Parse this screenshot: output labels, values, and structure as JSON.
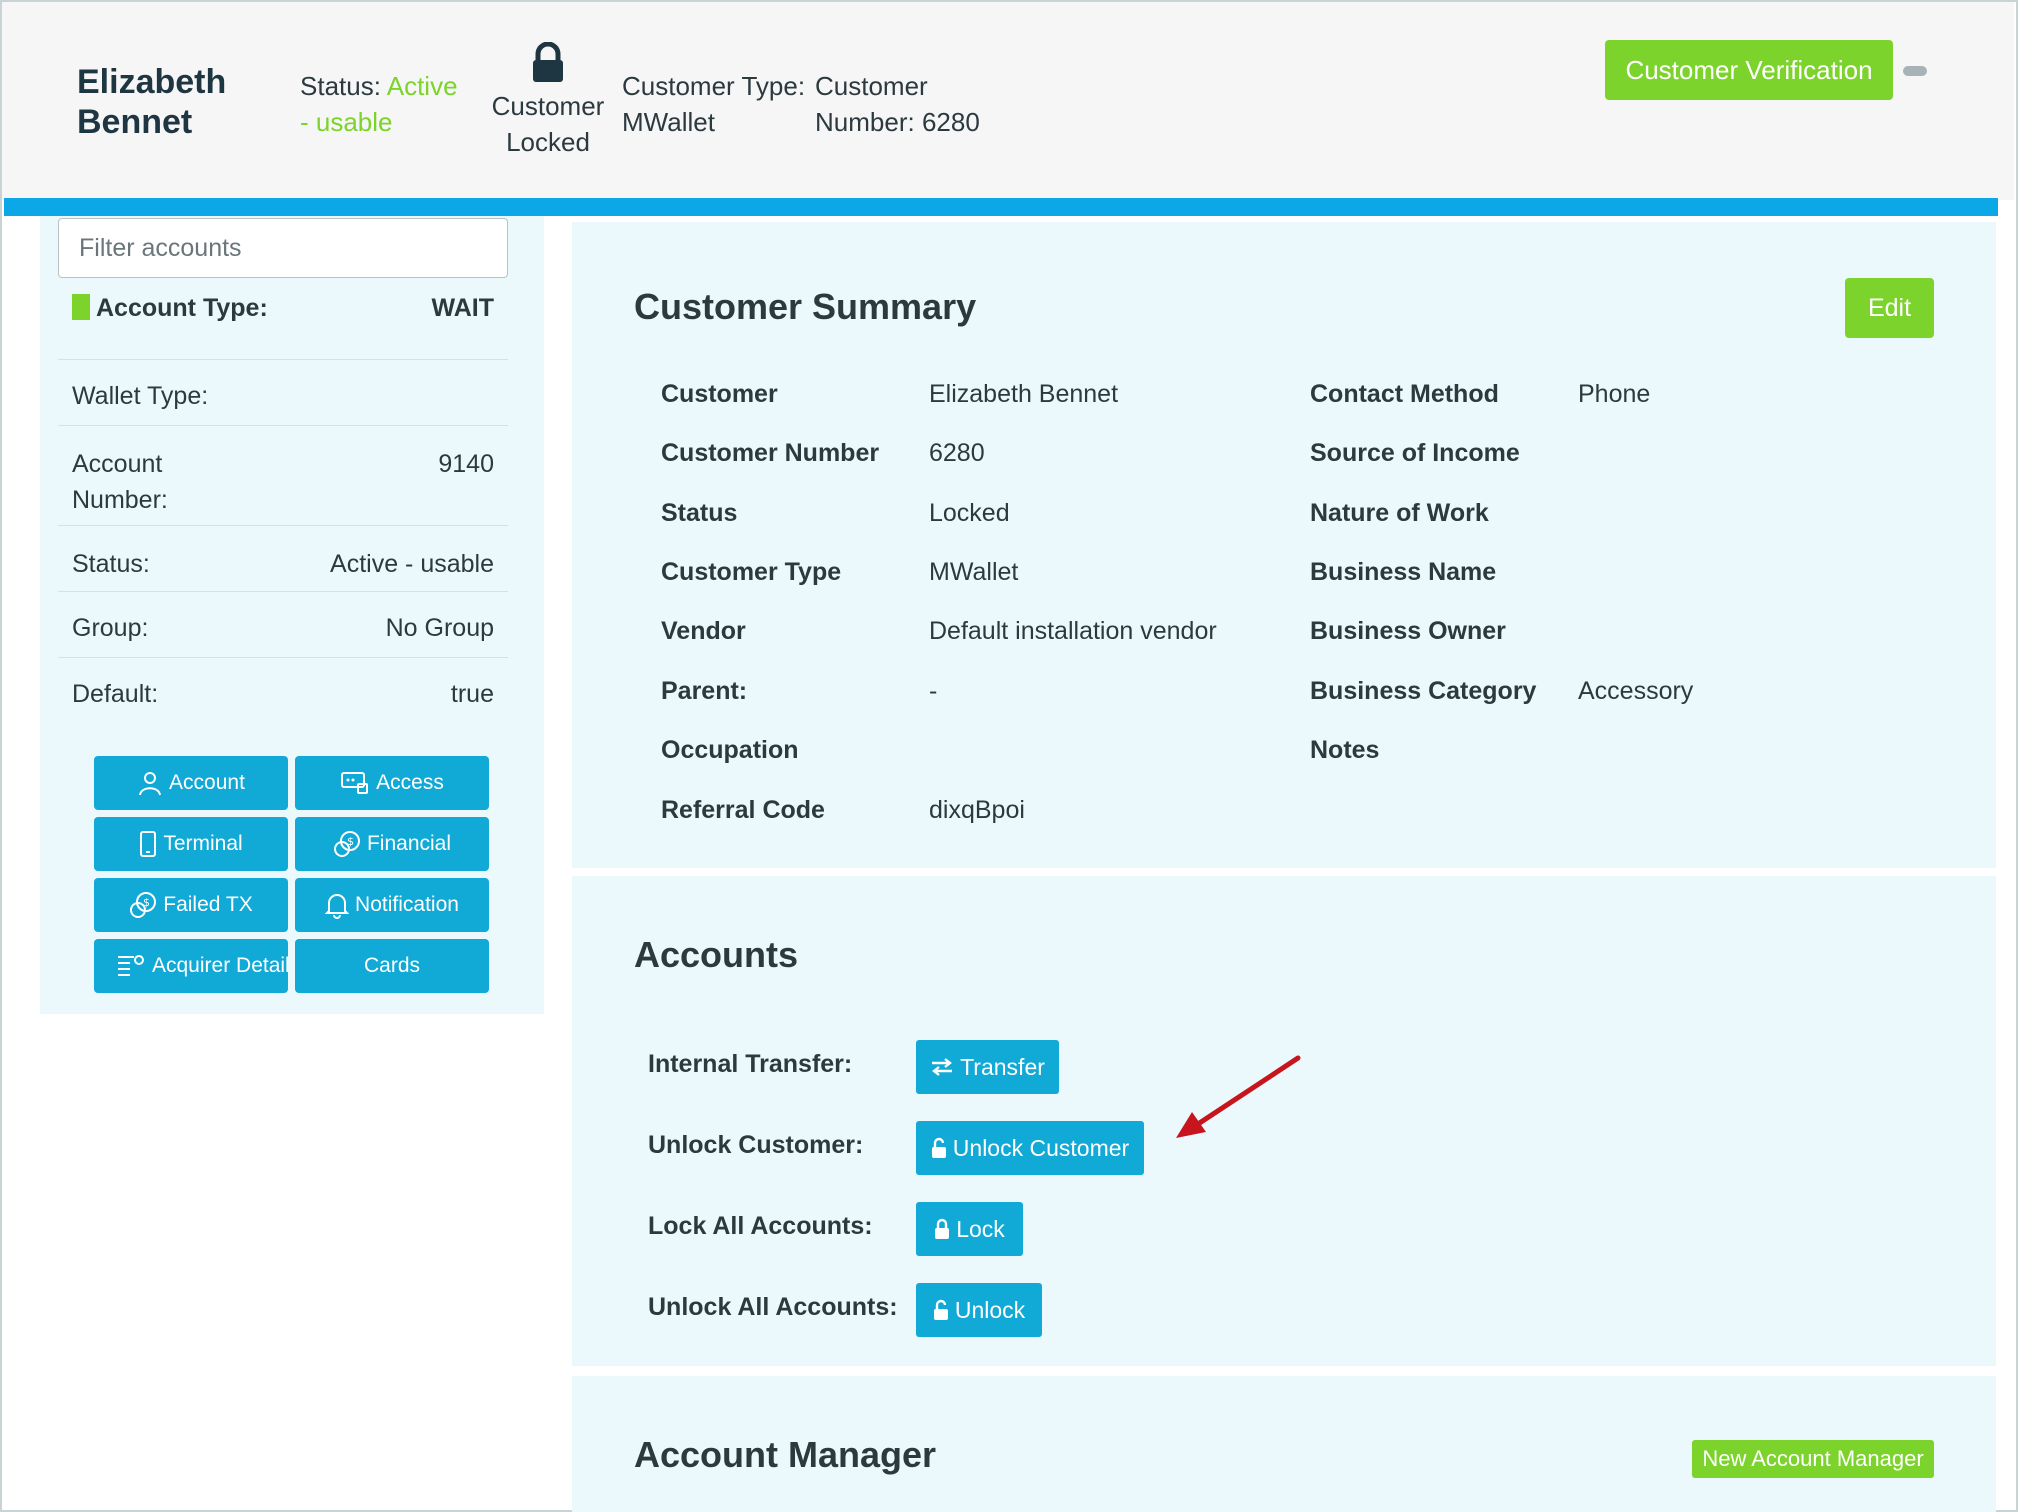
{
  "header": {
    "customer_name": "Elizabeth Bennet",
    "status_label": "Status:",
    "status_value": "Active - usable",
    "lock_state": "Customer Locked",
    "customer_type_label": "Customer Type:",
    "customer_type_value": "MWallet",
    "customer_number_label": "Customer Number:",
    "customer_number_value": "6280",
    "verification_button": "Customer Verification",
    "accent_color": "#0ba7e7",
    "green_color": "#7cd32c"
  },
  "sidebar": {
    "filter_placeholder": "Filter accounts",
    "rows": [
      {
        "label": "Account Type:",
        "value": "WAIT"
      },
      {
        "label": "Wallet Type:",
        "value": ""
      },
      {
        "label": "Account Number:",
        "value": "9140"
      },
      {
        "label": "Status:",
        "value": "Active - usable"
      },
      {
        "label": "Group:",
        "value": "No Group"
      },
      {
        "label": "Default:",
        "value": "true"
      }
    ],
    "buttons": [
      {
        "label": "Account",
        "icon": "user-icon"
      },
      {
        "label": "Access",
        "icon": "access-icon"
      },
      {
        "label": "Terminal",
        "icon": "phone-icon"
      },
      {
        "label": "Financial",
        "icon": "coins-icon"
      },
      {
        "label": "Failed TX",
        "icon": "coins-icon"
      },
      {
        "label": "Notification",
        "icon": "bell-icon"
      },
      {
        "label": "Acquirer Details",
        "icon": "list-search-icon"
      },
      {
        "label": "Cards",
        "icon": ""
      }
    ]
  },
  "summary": {
    "title": "Customer Summary",
    "edit_button": "Edit",
    "left_fields": [
      {
        "label": "Customer",
        "value": "Elizabeth Bennet"
      },
      {
        "label": "Customer Number",
        "value": "6280"
      },
      {
        "label": "Status",
        "value": "Locked"
      },
      {
        "label": "Customer Type",
        "value": "MWallet"
      },
      {
        "label": "Vendor",
        "value": "Default installation vendor"
      },
      {
        "label": "Parent:",
        "value": "-"
      },
      {
        "label": "Occupation",
        "value": ""
      },
      {
        "label": "Referral Code",
        "value": "dixqBpoi"
      }
    ],
    "right_fields": [
      {
        "label": "Contact Method",
        "value": "Phone"
      },
      {
        "label": "Source of Income",
        "value": ""
      },
      {
        "label": "Nature of Work",
        "value": ""
      },
      {
        "label": "Business Name",
        "value": ""
      },
      {
        "label": "Business Owner",
        "value": ""
      },
      {
        "label": "Business Category",
        "value": "Accessory"
      },
      {
        "label": "Notes",
        "value": ""
      }
    ]
  },
  "accounts": {
    "title": "Accounts",
    "actions": [
      {
        "label": "Internal Transfer:",
        "button": "Transfer",
        "icon": "transfer-icon"
      },
      {
        "label": "Unlock Customer:",
        "button": "Unlock Customer",
        "icon": "unlock-icon"
      },
      {
        "label": "Lock All Accounts:",
        "button": "Lock",
        "icon": "lock-icon"
      },
      {
        "label": "Unlock All Accounts:",
        "button": "Unlock",
        "icon": "unlock-icon"
      }
    ]
  },
  "account_manager": {
    "title": "Account Manager",
    "new_button": "New Account Manager"
  }
}
